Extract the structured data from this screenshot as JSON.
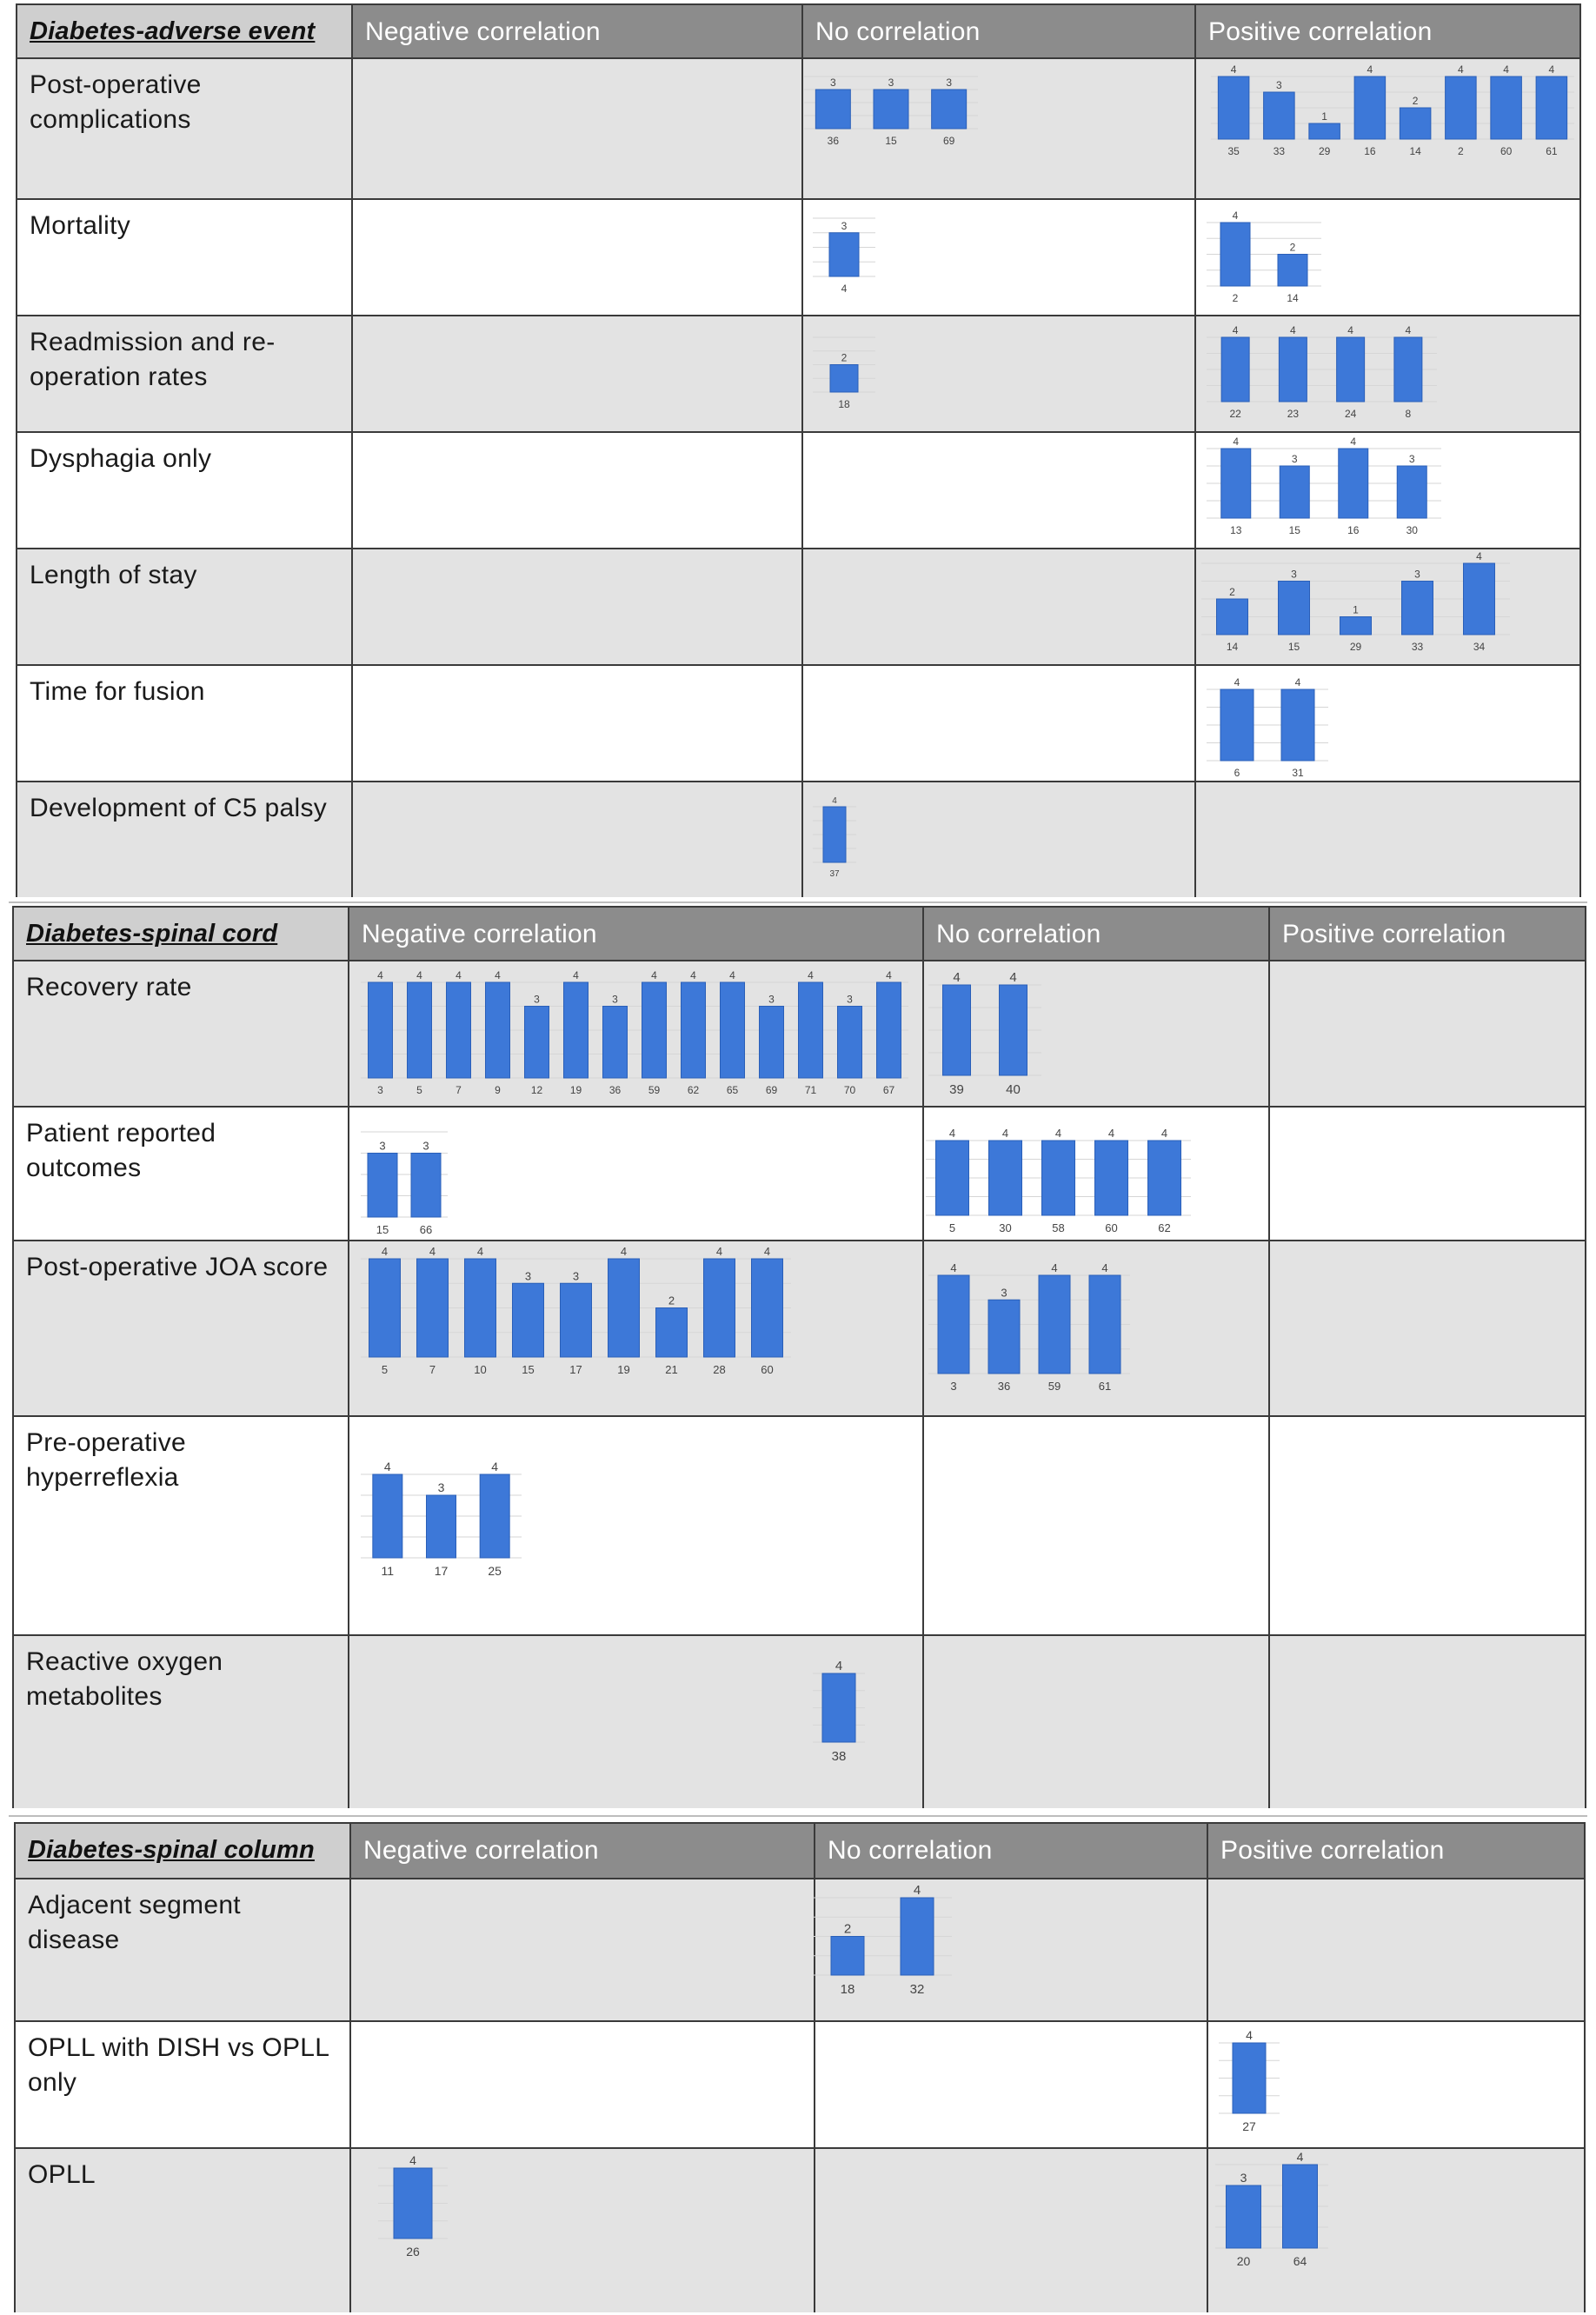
{
  "headers": {
    "negative": "Negative correlation",
    "none": "No correlation",
    "positive": "Positive correlation"
  },
  "sections": [
    {
      "id": "adverse",
      "title": "Diabetes-adverse event",
      "rows": [
        {
          "label": "Post-operative complications"
        },
        {
          "label": "Mortality"
        },
        {
          "label": "Readmission and re-operation rates"
        },
        {
          "label": "Dysphagia only"
        },
        {
          "label": "Length of stay"
        },
        {
          "label": "Time for fusion"
        },
        {
          "label": "Development of C5 palsy"
        }
      ]
    },
    {
      "id": "cord",
      "title": "Diabetes-spinal cord",
      "rows": [
        {
          "label": "Recovery rate"
        },
        {
          "label": "Patient reported outcomes"
        },
        {
          "label": "Post-operative JOA score"
        },
        {
          "label": "Pre-operative hyperreflexia"
        },
        {
          "label": "Reactive oxygen metabolites"
        }
      ]
    },
    {
      "id": "column",
      "title": "Diabetes-spinal column",
      "rows": [
        {
          "label": "Adjacent segment disease"
        },
        {
          "label": "OPLL with DISH vs OPLL only"
        },
        {
          "label": "OPLL"
        }
      ]
    }
  ],
  "chart_data": [
    {
      "type": "bar",
      "ylim": [
        0,
        4
      ],
      "categories": [
        "36",
        "15",
        "69"
      ],
      "values": [
        3,
        3,
        3
      ]
    },
    {
      "type": "bar",
      "ylim": [
        0,
        4
      ],
      "categories": [
        "35",
        "33",
        "29",
        "16",
        "14",
        "2",
        "60",
        "61"
      ],
      "values": [
        4,
        3,
        1,
        4,
        2,
        4,
        4,
        4
      ]
    },
    {
      "type": "bar",
      "ylim": [
        0,
        4
      ],
      "categories": [
        "4"
      ],
      "values": [
        3
      ]
    },
    {
      "type": "bar",
      "ylim": [
        0,
        4
      ],
      "categories": [
        "2",
        "14"
      ],
      "values": [
        4,
        2
      ]
    },
    {
      "type": "bar",
      "ylim": [
        0,
        4
      ],
      "categories": [
        "18"
      ],
      "values": [
        2
      ]
    },
    {
      "type": "bar",
      "ylim": [
        0,
        4
      ],
      "categories": [
        "22",
        "23",
        "24",
        "8"
      ],
      "values": [
        4,
        4,
        4,
        4
      ]
    },
    {
      "type": "bar",
      "ylim": [
        0,
        4
      ],
      "categories": [
        "13",
        "15",
        "16",
        "30"
      ],
      "values": [
        4,
        3,
        4,
        3
      ]
    },
    {
      "type": "bar",
      "ylim": [
        0,
        4
      ],
      "categories": [
        "14",
        "15",
        "29",
        "33",
        "34"
      ],
      "values": [
        2,
        3,
        1,
        3,
        4
      ]
    },
    {
      "type": "bar",
      "ylim": [
        0,
        4
      ],
      "categories": [
        "6",
        "31"
      ],
      "values": [
        4,
        4
      ]
    },
    {
      "type": "bar",
      "ylim": [
        0,
        4
      ],
      "categories": [
        "37"
      ],
      "values": [
        4
      ]
    },
    {
      "type": "bar",
      "ylim": [
        0,
        4
      ],
      "categories": [
        "3",
        "5",
        "7",
        "9",
        "12",
        "19",
        "36",
        "59",
        "62",
        "65",
        "69",
        "71",
        "70",
        "67"
      ],
      "values": [
        4,
        4,
        4,
        4,
        3,
        4,
        3,
        4,
        4,
        4,
        3,
        4,
        3,
        4
      ]
    },
    {
      "type": "bar",
      "ylim": [
        0,
        4
      ],
      "categories": [
        "39",
        "40"
      ],
      "values": [
        4,
        4
      ]
    },
    {
      "type": "bar",
      "ylim": [
        0,
        4
      ],
      "categories": [
        "15",
        "66"
      ],
      "values": [
        3,
        3
      ]
    },
    {
      "type": "bar",
      "ylim": [
        0,
        4
      ],
      "categories": [
        "5",
        "30",
        "58",
        "60",
        "62"
      ],
      "values": [
        4,
        4,
        4,
        4,
        4
      ]
    },
    {
      "type": "bar",
      "ylim": [
        0,
        4
      ],
      "categories": [
        "5",
        "7",
        "10",
        "15",
        "17",
        "19",
        "21",
        "28",
        "60"
      ],
      "values": [
        4,
        4,
        4,
        3,
        3,
        4,
        2,
        4,
        4
      ]
    },
    {
      "type": "bar",
      "ylim": [
        0,
        4
      ],
      "categories": [
        "3",
        "36",
        "59",
        "61"
      ],
      "values": [
        4,
        3,
        4,
        4
      ]
    },
    {
      "type": "bar",
      "ylim": [
        0,
        4
      ],
      "categories": [
        "11",
        "17",
        "25"
      ],
      "values": [
        4,
        3,
        4
      ]
    },
    {
      "type": "bar",
      "ylim": [
        0,
        4
      ],
      "categories": [
        "38"
      ],
      "values": [
        4
      ]
    },
    {
      "type": "bar",
      "ylim": [
        0,
        4
      ],
      "categories": [
        "18",
        "32"
      ],
      "values": [
        2,
        4
      ]
    },
    {
      "type": "bar",
      "ylim": [
        0,
        4
      ],
      "categories": [
        "27"
      ],
      "values": [
        4
      ]
    },
    {
      "type": "bar",
      "ylim": [
        0,
        4
      ],
      "categories": [
        "26"
      ],
      "values": [
        4
      ]
    },
    {
      "type": "bar",
      "ylim": [
        0,
        4
      ],
      "categories": [
        "20",
        "64"
      ],
      "values": [
        3,
        4
      ]
    }
  ]
}
